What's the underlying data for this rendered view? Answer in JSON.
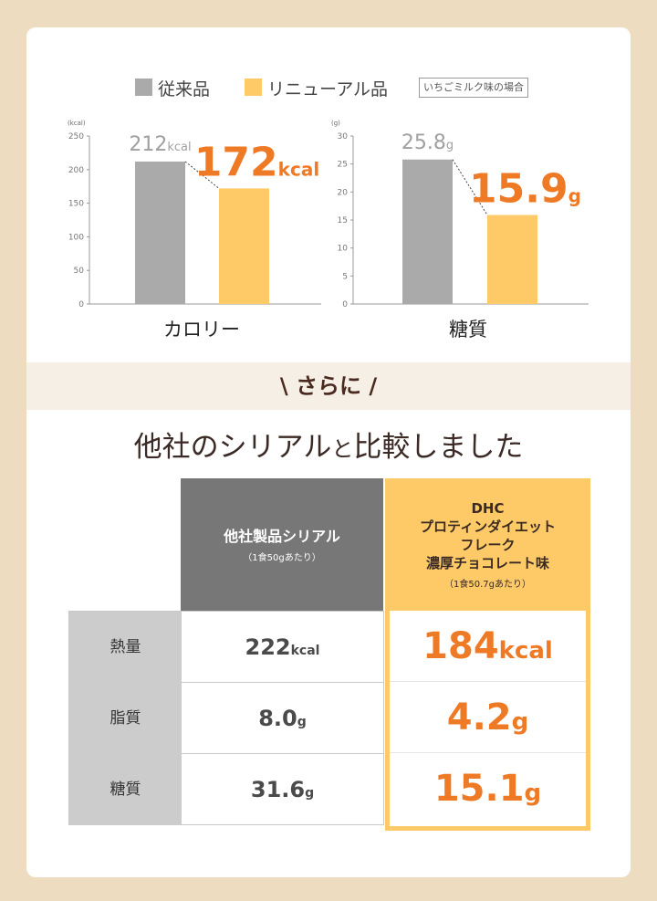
{
  "legend": {
    "old_label": "従来品",
    "new_label": "リニューアル品",
    "note": "いちごミルク味の場合"
  },
  "colors": {
    "old": "#aaaaaa",
    "new": "#fdca67",
    "accent": "#ef7a26"
  },
  "chart_data": [
    {
      "type": "bar",
      "title": "カロリー",
      "unit_label": "(kcal)",
      "categories": [
        "従来品",
        "リニューアル品"
      ],
      "values": [
        212,
        172
      ],
      "value_labels": [
        {
          "number": "212",
          "unit": "kcal"
        },
        {
          "number": "172",
          "unit": "kcal"
        }
      ],
      "ylim": [
        0,
        250
      ],
      "yticks": [
        0,
        50,
        100,
        150,
        200,
        250
      ]
    },
    {
      "type": "bar",
      "title": "糖質",
      "unit_label": "(g)",
      "categories": [
        "従来品",
        "リニューアル品"
      ],
      "values": [
        25.8,
        15.9
      ],
      "value_labels": [
        {
          "number": "25.8",
          "unit": "g"
        },
        {
          "number": "15.9",
          "unit": "g"
        }
      ],
      "ylim": [
        0,
        30
      ],
      "yticks": [
        0,
        5,
        10,
        15,
        20,
        25,
        30
      ]
    }
  ],
  "band": {
    "text": "\\ さらに /"
  },
  "heading": {
    "part1": "他社のシリアル",
    "part2": "と",
    "part3": "比較しました"
  },
  "table": {
    "other": {
      "title": "他社製品シリアル",
      "sub": "（1食50gあたり）"
    },
    "dhc": {
      "title": "DHC\nプロティンダイエット\nフレーク\n濃厚チョコレート味",
      "sub": "（1食50.7gあたり）"
    },
    "rows": [
      {
        "name": "熱量",
        "other_num": "222",
        "other_unit": "kcal",
        "dhc_num": "184",
        "dhc_unit": "kcal"
      },
      {
        "name": "脂質",
        "other_num": "8.0",
        "other_unit": "g",
        "dhc_num": "4.2",
        "dhc_unit": "g"
      },
      {
        "name": "糖質",
        "other_num": "31.6",
        "other_unit": "g",
        "dhc_num": "15.1",
        "dhc_unit": "g"
      }
    ]
  }
}
